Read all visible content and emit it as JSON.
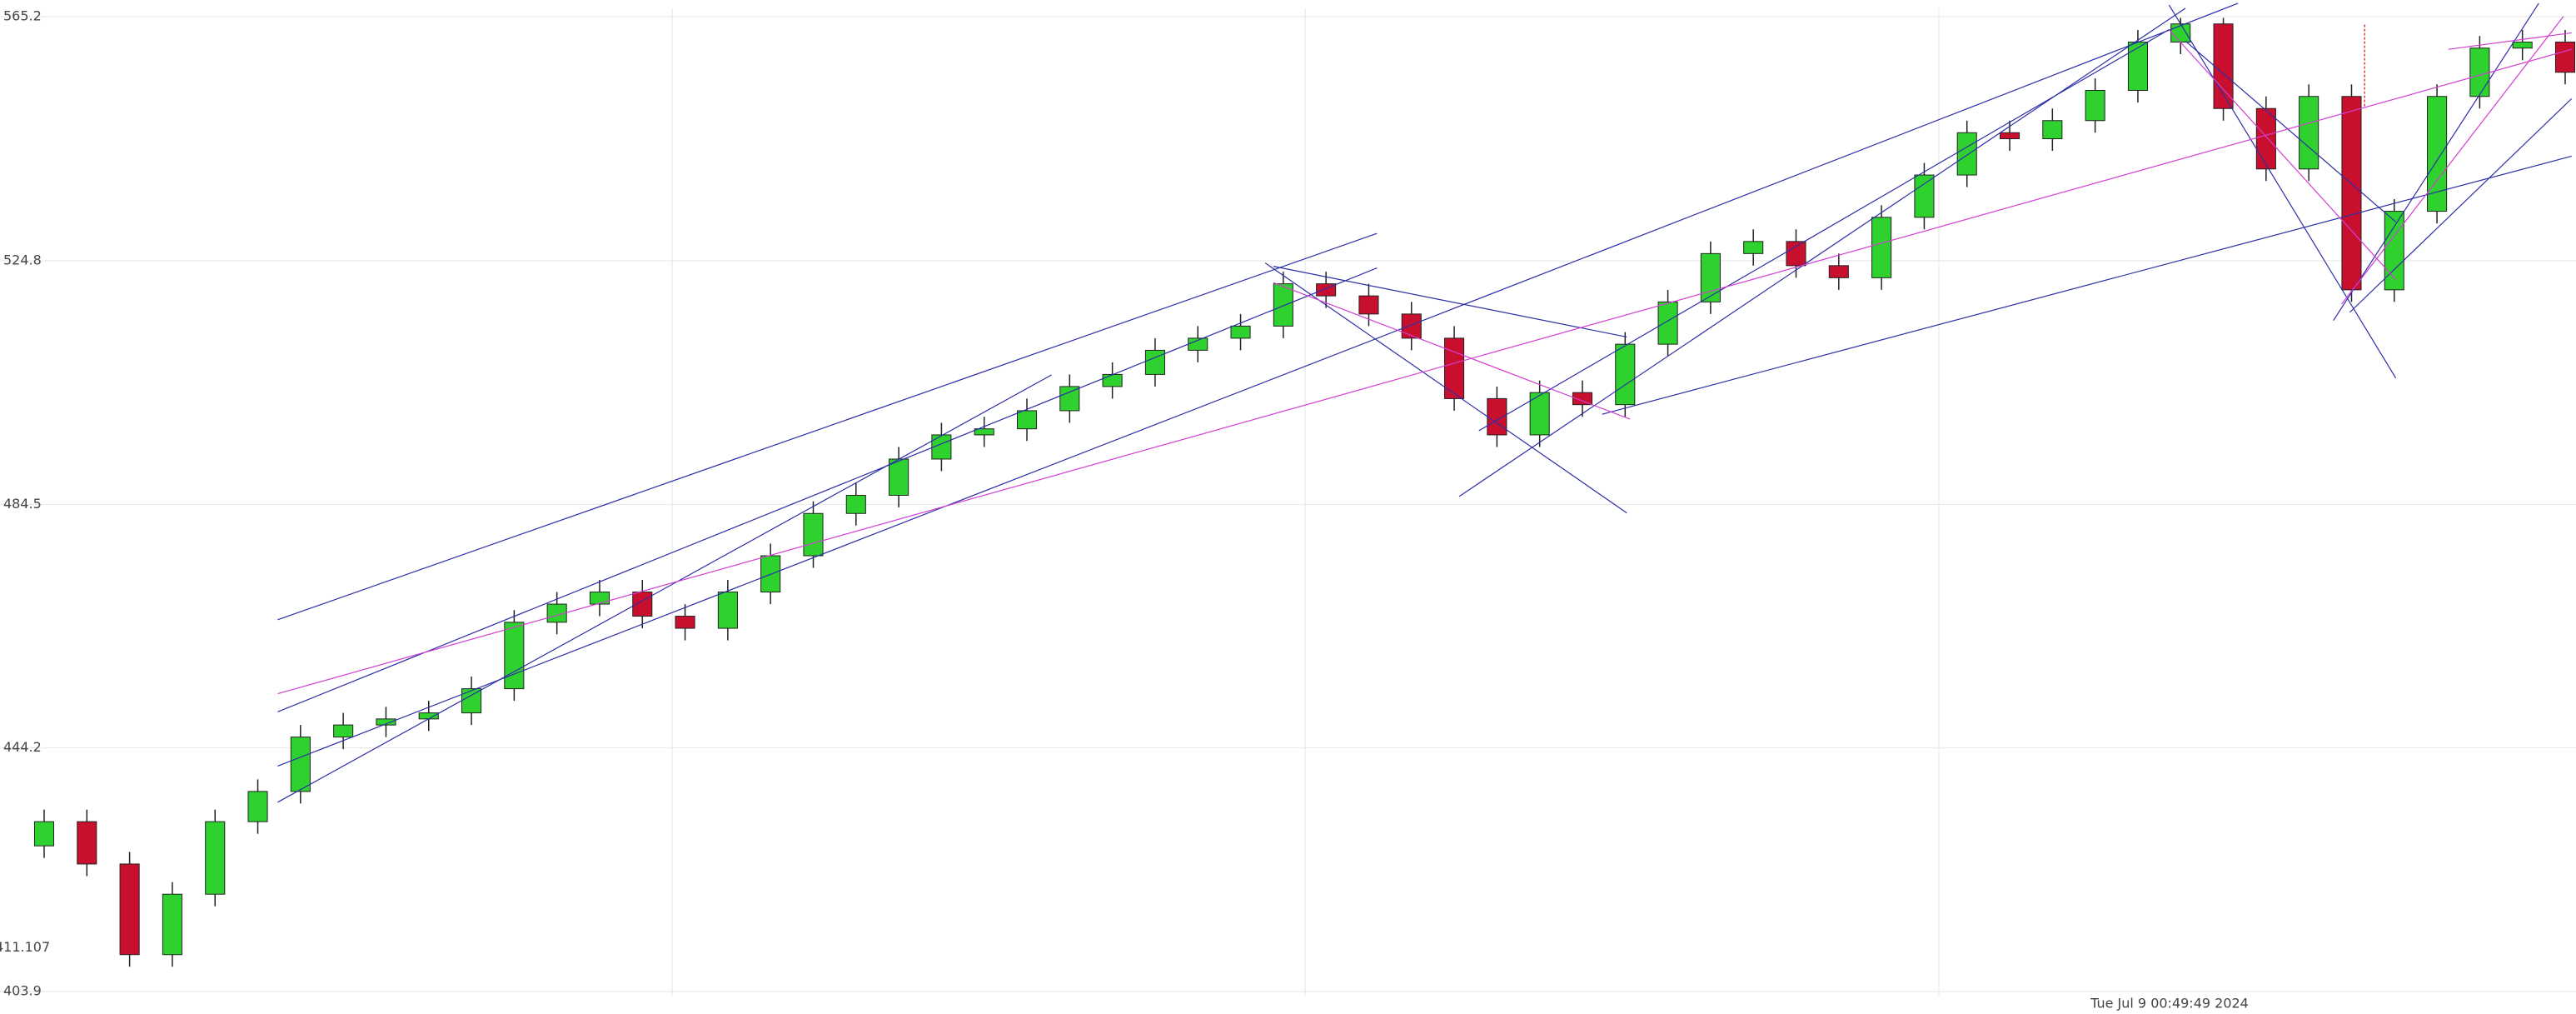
{
  "chart_data": {
    "type": "candlestick",
    "open": [
      428,
      432,
      425,
      410,
      420,
      432,
      437,
      446,
      448,
      449,
      450,
      454,
      465,
      468,
      470,
      466,
      464,
      470,
      476,
      483,
      486,
      492,
      496,
      497,
      500,
      504,
      506,
      510,
      512,
      514,
      521,
      519,
      516,
      512,
      502,
      496,
      503,
      501,
      511,
      518,
      526,
      528,
      524,
      522,
      532,
      539,
      546,
      545,
      548,
      553,
      561,
      564,
      550,
      540,
      552,
      520,
      533,
      552,
      560,
      561
    ],
    "high": [
      434,
      434,
      427,
      422,
      434,
      439,
      448,
      450,
      451,
      452,
      456,
      467,
      470,
      472,
      472,
      468,
      472,
      478,
      485,
      488,
      494,
      498,
      499,
      502,
      506,
      508,
      512,
      514,
      516,
      523,
      523,
      521,
      518,
      514,
      504,
      505,
      505,
      513,
      520,
      528,
      530,
      530,
      526,
      534,
      541,
      548,
      548,
      550,
      555,
      563,
      565,
      565,
      552,
      554,
      554,
      535,
      554,
      562,
      563,
      563
    ],
    "low": [
      426,
      423,
      408,
      408,
      418,
      430,
      435,
      444,
      446,
      447,
      448,
      452,
      463,
      466,
      464,
      462,
      462,
      468,
      474,
      481,
      484,
      490,
      494,
      495,
      498,
      502,
      504,
      508,
      510,
      512,
      517,
      514,
      510,
      500,
      494,
      494,
      499,
      499,
      509,
      516,
      524,
      522,
      520,
      520,
      530,
      537,
      543,
      543,
      546,
      551,
      559,
      548,
      538,
      538,
      518,
      518,
      531,
      550,
      558,
      554
    ],
    "close": [
      432,
      425,
      410,
      420,
      432,
      437,
      446,
      448,
      449,
      450,
      454,
      465,
      468,
      470,
      466,
      464,
      470,
      476,
      483,
      486,
      492,
      496,
      497,
      500,
      504,
      506,
      510,
      512,
      514,
      521,
      519,
      516,
      512,
      502,
      496,
      503,
      501,
      511,
      518,
      526,
      528,
      524,
      522,
      532,
      539,
      546,
      545,
      548,
      553,
      561,
      564,
      550,
      540,
      552,
      520,
      533,
      552,
      560,
      561,
      556
    ],
    "up_color": "#2fd12f",
    "down_color": "#c8102e",
    "ylim": [
      403.9,
      565.2
    ],
    "yticks": [
      403.9,
      444.2,
      484.5,
      524.8,
      565.2
    ],
    "price_marker": 411.107,
    "x_label": "Tue Jul 9 00:49:49 2024",
    "grid": true
  }
}
